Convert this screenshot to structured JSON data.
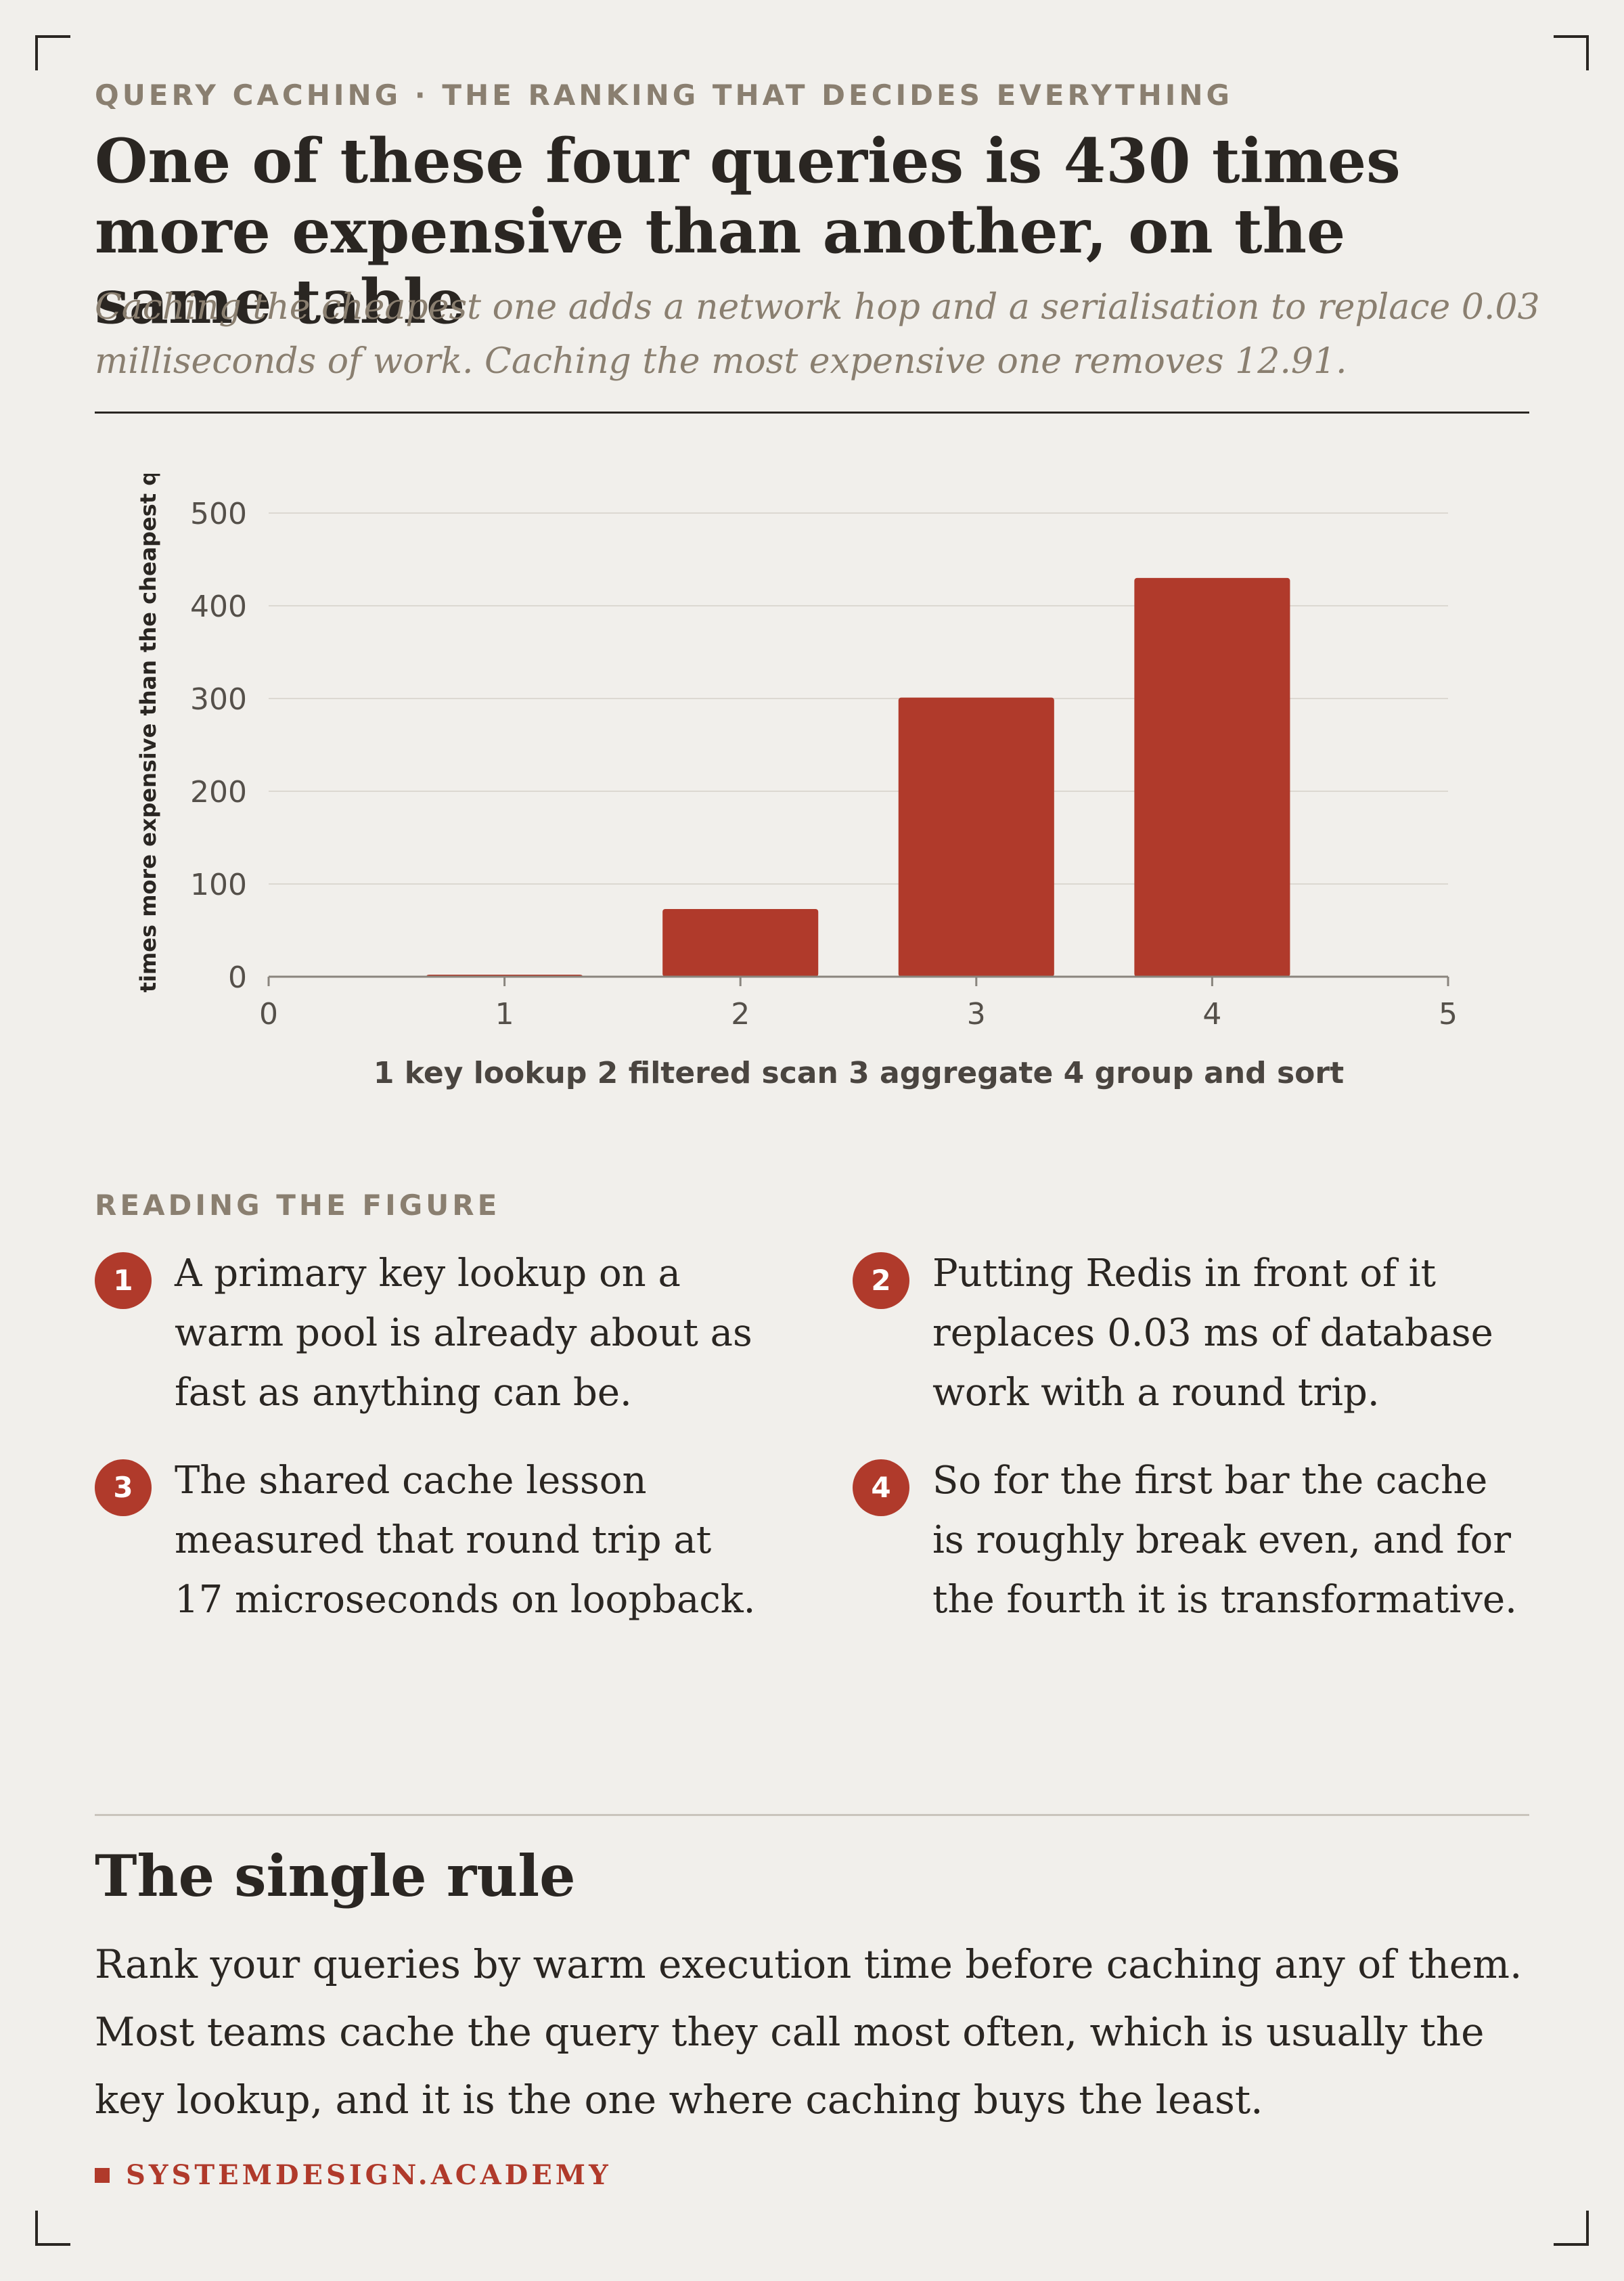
{
  "kicker": "QUERY CACHING · THE RANKING THAT DECIDES EVERYTHING",
  "title": "One of these four queries is 430 times more expensive than another, on the same table",
  "subtitle": "Caching the cheapest one adds a network hop and a serialisation to replace 0.03 milliseconds of work. Caching the most expensive one removes 12.91.",
  "chart_data": {
    "type": "bar",
    "x": [
      1,
      2,
      3,
      4
    ],
    "values": [
      1,
      73,
      301,
      430
    ],
    "xlabel": "1 key lookup 2 filtered scan 3 aggregate 4 group and sort",
    "ylabel": "times more expensive than the cheapest query",
    "xlim": [
      0,
      5
    ],
    "ylim": [
      0,
      500
    ],
    "xticks": [
      0,
      1,
      2,
      3,
      4,
      5
    ],
    "yticks": [
      0,
      100,
      200,
      300,
      400,
      500
    ],
    "grid": "horizontal",
    "bar_color": "#b03a2b"
  },
  "reading": {
    "label": "READING THE FIGURE",
    "notes": [
      {
        "num": "1",
        "text": "A primary key lookup on a warm pool is already about as fast as anything can be."
      },
      {
        "num": "2",
        "text": "Putting Redis in front of it replaces 0.03 ms of database work with a round trip."
      },
      {
        "num": "3",
        "text": "The shared cache lesson measured that round trip at 17 microseconds on loopback."
      },
      {
        "num": "4",
        "text": "So for the first bar the cache is roughly break even, and for the fourth it is transformative."
      }
    ]
  },
  "rule": {
    "title": "The single rule",
    "body": "Rank your queries by warm execution time before caching any of them. Most teams cache the query they call most often, which is usually the key lookup, and it is the one where caching buys the least."
  },
  "brand": "SYSTEMDESIGN.ACADEMY",
  "colors": {
    "accent": "#b03a2b",
    "background": "#f1efeb",
    "muted": "#8a7f70",
    "ink": "#2a2622"
  }
}
